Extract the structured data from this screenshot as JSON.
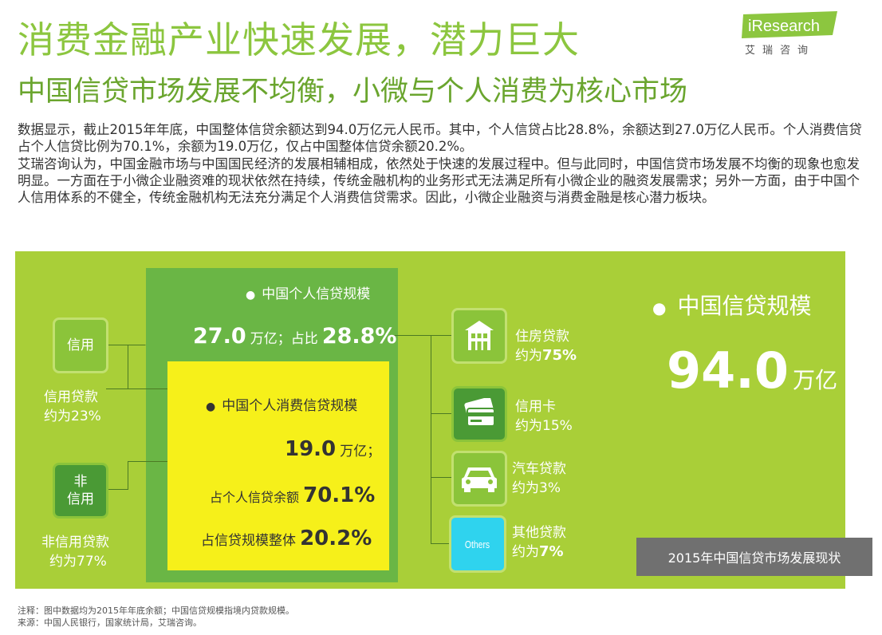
{
  "header": {
    "title": "消费金融产业快速发展，潜力巨大",
    "subtitle": "中国信贷市场发展不均衡，小微与个人消费为核心市场"
  },
  "logo": {
    "brand": "iResearch",
    "sub": "艾瑞咨询"
  },
  "body": {
    "p1": "数据显示，截止2015年年底，中国整体信贷余额达到94.0万亿元人民币。其中，个人信贷占比28.8%，余额达到27.0万亿人民币。个人消费信贷占个人信贷比例为70.1%，余额为19.0万亿，仅占中国整体信贷余额20.2%。",
    "p2": "艾瑞咨询认为，中国金融市场与中国国民经济的发展相辅相成，依然处于快速的发展过程中。但与此同时，中国信贷市场发展不均衡的现象也愈发明显。一方面在于小微企业融资难的现状依然在持续，传统金融机构的业务形式无法满足所有小微企业的融资发展需求；另外一方面，由于中国个人信用体系的不健全，传统金融机构无法充分满足个人消费信贷需求。因此，小微企业融资与消费金融是核心潜力板块。"
  },
  "left": {
    "credit_box": "信用",
    "credit_caption_1": "信用贷款",
    "credit_caption_2": "约为23%",
    "noncredit_box_1": "非",
    "noncredit_box_2": "信用",
    "noncredit_caption_1": "非信用贷款",
    "noncredit_caption_2": "约为77%"
  },
  "personal": {
    "title": "中国个人信贷规模",
    "amount": "27.0",
    "unit": "万亿；占比",
    "pct": "28.8%"
  },
  "consumer": {
    "title": "中国个人消费信贷规模",
    "amount": "19.0",
    "unit": "万亿；",
    "share_label": "占个人信贷余额",
    "share_pct": "70.1%",
    "total_label": "占信贷规模整体",
    "total_pct": "20.2%"
  },
  "right_items": [
    {
      "icon": "house-icon",
      "l1": "住房贷款",
      "l2a": "约为",
      "l2b": "75%"
    },
    {
      "icon": "credit-card-icon",
      "l1": "信用卡",
      "l2a": "约为",
      "l2b": "15%"
    },
    {
      "icon": "car-icon",
      "l1": "汽车贷款",
      "l2a": "约为",
      "l2b": "3%"
    },
    {
      "icon": "others-icon",
      "box": "Others",
      "l1": "其他贷款",
      "l2a": "约为",
      "l2b": "7%"
    }
  ],
  "china_credit": {
    "title": "中国信贷规模",
    "amount": "94.0",
    "unit": "万亿"
  },
  "status_label": "2015年中国信贷市场发展现状",
  "footnotes": {
    "note": "注释：图中数据均为2015年年底余额；中国信贷规模指境内贷款规模。",
    "source": "来源：中国人民银行，国家统计局，艾瑞咨询。"
  },
  "colors": {
    "title_green": "#8cc63f",
    "panel_green": "#a9cf38",
    "inner_green": "#6ab645",
    "highlight_yellow": "#f6f01a",
    "others_cyan": "#2fd3ee"
  }
}
